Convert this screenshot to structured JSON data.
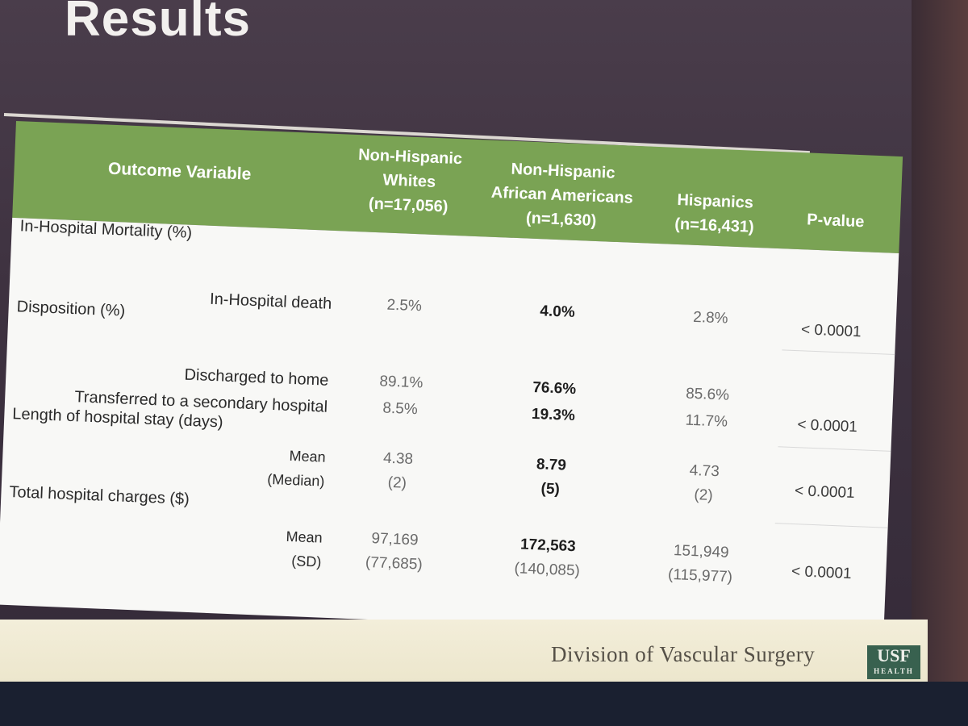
{
  "slide": {
    "title": "Results",
    "footer": "Division of Vascular Surgery",
    "logo_top": "USF",
    "logo_bottom": "HEALTH"
  },
  "table": {
    "headers": {
      "outcome": "Outcome Variable",
      "col1": [
        "Non-Hispanic",
        "Whites",
        "(n=17,056)"
      ],
      "col2": [
        "Non-Hispanic",
        "African Americans",
        "(n=1,630)"
      ],
      "col3": [
        "Hispanics",
        "(n=16,431)"
      ],
      "pvalue": "P-value"
    },
    "sections": {
      "mortality": {
        "label": "In-Hospital Mortality (%)",
        "row_label": "In-Hospital death",
        "values": [
          "2.5%",
          "4.0%",
          "2.8%"
        ],
        "p": "< 0.0001"
      },
      "disposition": {
        "label": "Disposition (%)",
        "rows": [
          {
            "label": "Discharged to home",
            "values": [
              "89.1%",
              "76.6%",
              "85.6%"
            ]
          },
          {
            "label": "Transferred to a secondary hospital",
            "values": [
              "8.5%",
              "19.3%",
              "11.7%"
            ]
          }
        ],
        "p": "< 0.0001"
      },
      "los": {
        "label": "Length of hospital stay (days)",
        "rows": [
          {
            "label": "Mean",
            "values": [
              "4.38",
              "8.79",
              "4.73"
            ]
          },
          {
            "label": "(Median)",
            "values": [
              "(2)",
              "(5)",
              "(2)"
            ]
          }
        ],
        "p": "< 0.0001"
      },
      "charges": {
        "label": "Total hospital charges ($)",
        "rows": [
          {
            "label": "Mean",
            "values": [
              "97,169",
              "172,563",
              "151,949"
            ]
          },
          {
            "label": "(SD)",
            "values": [
              "(77,685)",
              "(140,085)",
              "(115,977)"
            ]
          }
        ],
        "p": "< 0.0001"
      }
    }
  },
  "colors": {
    "header_green": "#7aa354",
    "slide_bg": "#3e3240",
    "footer_bg": "#f3eeda",
    "logo_green": "#38614f"
  }
}
